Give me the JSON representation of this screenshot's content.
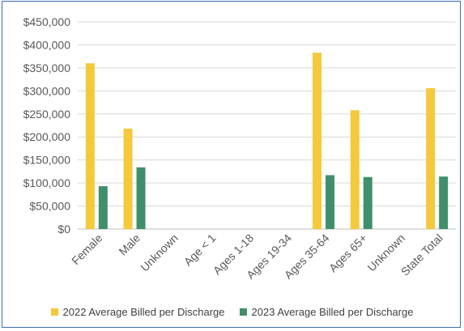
{
  "chart_data": {
    "type": "bar",
    "categories": [
      "Female",
      "Male",
      "Unknown",
      "Age < 1",
      "Ages 1-18",
      "Ages 19-34",
      "Ages 35-64",
      "Ages 65+",
      "Unknown",
      "State Total"
    ],
    "series": [
      {
        "name": "2022 Average Billed per Discharge",
        "color": "#f4c93c",
        "values": [
          360000,
          218000,
          0,
          0,
          0,
          0,
          383000,
          258000,
          0,
          306000
        ]
      },
      {
        "name": "2023 Average Billed per Discharge",
        "color": "#3f8f6b",
        "values": [
          93000,
          134000,
          0,
          0,
          0,
          0,
          117000,
          113000,
          0,
          114000
        ]
      }
    ],
    "y_ticks": [
      "$0",
      "$50,000",
      "$100,000",
      "$150,000",
      "$200,000",
      "$250,000",
      "$300,000",
      "$350,000",
      "$400,000",
      "$450,000"
    ],
    "ylim": [
      0,
      450000
    ],
    "grid": true,
    "legend_position": "bottom"
  },
  "legend": {
    "item_2022": "2022 Average Billed per Discharge",
    "item_2023": "2023 Average Billed per Discharge"
  }
}
